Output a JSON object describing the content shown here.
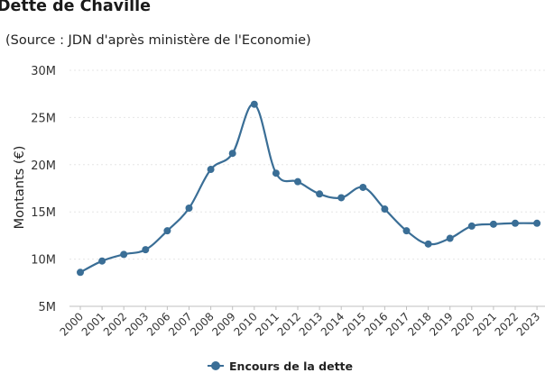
{
  "chart_data": {
    "type": "line",
    "title": "Dette de Chaville",
    "subtitle": "(Source : JDN d'après ministère de l'Economie)",
    "xlabel": "",
    "ylabel": "Montants (€)",
    "ylim": [
      5000000,
      30000000
    ],
    "yticks": [
      {
        "value": 5000000,
        "label": "5M"
      },
      {
        "value": 10000000,
        "label": "10M"
      },
      {
        "value": 15000000,
        "label": "15M"
      },
      {
        "value": 20000000,
        "label": "20M"
      },
      {
        "value": 25000000,
        "label": "25M"
      },
      {
        "value": 30000000,
        "label": "30M"
      }
    ],
    "categories": [
      "2000",
      "2001",
      "2002",
      "2003",
      "2006",
      "2007",
      "2008",
      "2009",
      "2010",
      "2011",
      "2012",
      "2013",
      "2014",
      "2015",
      "2016",
      "2017",
      "2018",
      "2019",
      "2020",
      "2021",
      "2022",
      "2023"
    ],
    "series": [
      {
        "name": "Encours de la dette",
        "color": "#3a6e96",
        "values": [
          8600000,
          9800000,
          10500000,
          11000000,
          13000000,
          15400000,
          19500000,
          21200000,
          26400000,
          19100000,
          18200000,
          16900000,
          16500000,
          17600000,
          15300000,
          13000000,
          11600000,
          12200000,
          13500000,
          13700000,
          13800000,
          13800000
        ]
      }
    ],
    "grid": true,
    "legend": "bottom-center"
  }
}
